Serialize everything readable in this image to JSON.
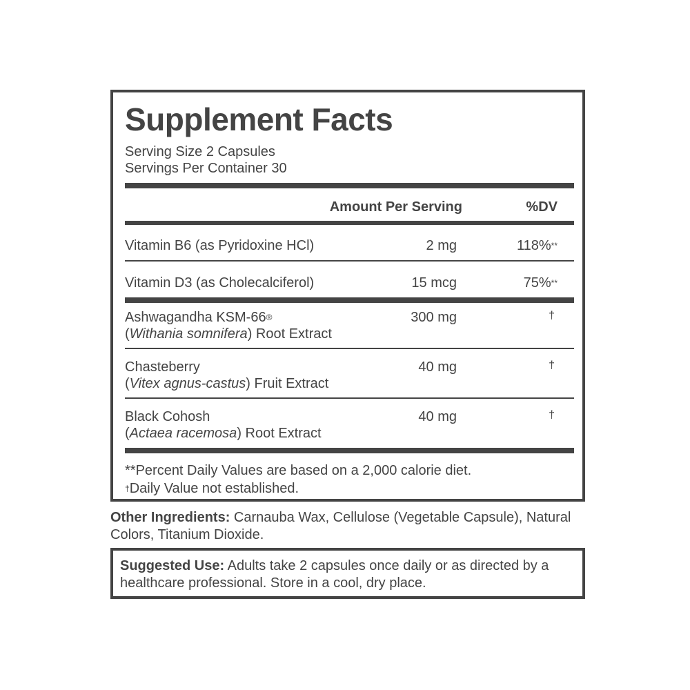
{
  "title": "Supplement Facts",
  "serving_size": "Serving Size 2 Capsules",
  "servings_per_container": "Servings Per Container 30",
  "header": {
    "amount": "Amount Per Serving",
    "dv": "%DV"
  },
  "rows": [
    {
      "name": "Vitamin B6 (as Pyridoxine HCl)",
      "amount": "2 mg",
      "dv": "118%",
      "dv_mark": "**"
    },
    {
      "name": "Vitamin D3 (as Cholecalciferol)",
      "amount": "15 mcg",
      "dv": "75%",
      "dv_mark": "**"
    },
    {
      "name": "Ashwagandha KSM-66",
      "name_mark": "®",
      "latin": "Withania somnifera",
      "extract": " Root Extract",
      "amount": "300 mg",
      "dv": "†"
    },
    {
      "name": "Chasteberry",
      "latin": "Vitex agnus-castus",
      "extract": " Fruit Extract",
      "amount": "40 mg",
      "dv": "†"
    },
    {
      "name": "Black Cohosh",
      "latin": "Actaea racemosa",
      "extract": " Root Extract",
      "amount": "40 mg",
      "dv": "†"
    }
  ],
  "footnotes": {
    "percent": "**Percent Daily Values are based on a 2,000 calorie diet.",
    "dagger_mark": "†",
    "dagger": "Daily Value not established."
  },
  "other_ingredients": {
    "label": "Other Ingredients:",
    "text": " Carnauba Wax, Cellulose (Vegetable Capsule), Natural Colors, Titanium Dioxide."
  },
  "suggested_use": {
    "label": "Suggested Use:",
    "text": " Adults take 2 capsules once daily or as directed by a healthcare professional. Store in a cool, dry place."
  },
  "colors": {
    "text": "#444444",
    "background": "#ffffff"
  }
}
